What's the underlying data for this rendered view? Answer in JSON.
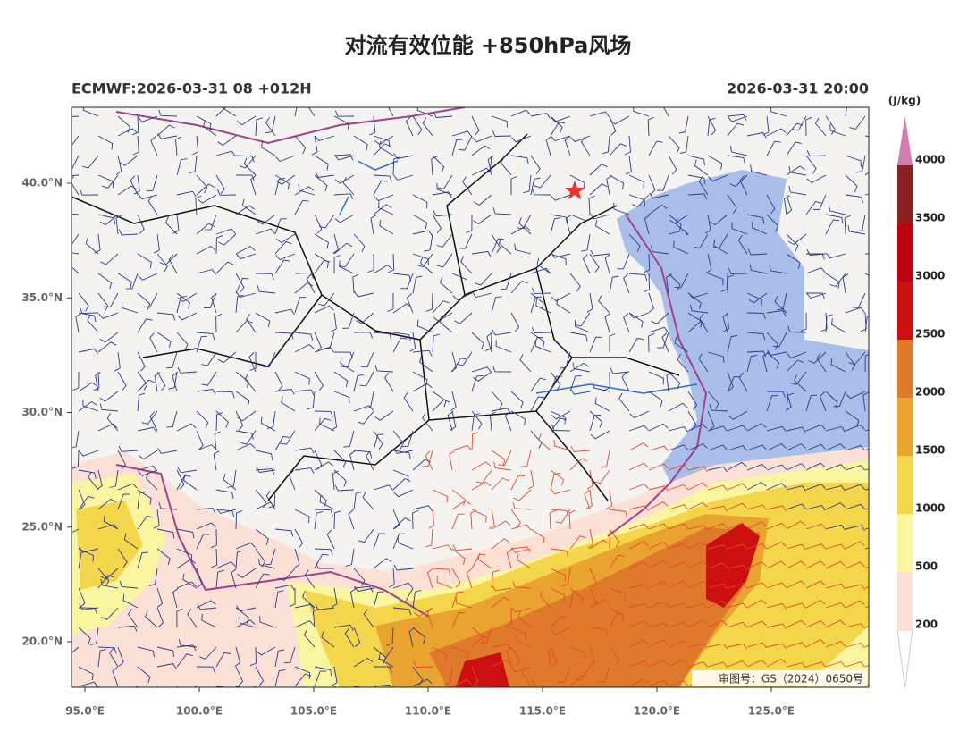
{
  "header": {
    "title": "对流有效位能 +850hPa风场",
    "left": "ECMWF:2026-03-31 08 +012H",
    "right": "2026-03-31 20:00"
  },
  "axes": {
    "x_ticks": [
      {
        "value": 95,
        "label": "95.0°E"
      },
      {
        "value": 100,
        "label": "100.0°E"
      },
      {
        "value": 105,
        "label": "105.0°E"
      },
      {
        "value": 110,
        "label": "110.0°E"
      },
      {
        "value": 115,
        "label": "115.0°E"
      },
      {
        "value": 120,
        "label": "120.0°E"
      },
      {
        "value": 125,
        "label": "125.0°E"
      }
    ],
    "y_ticks": [
      {
        "value": 40,
        "label": "40.0°N"
      },
      {
        "value": 35,
        "label": "35.0°N"
      },
      {
        "value": 30,
        "label": "30.0°N"
      },
      {
        "value": 25,
        "label": "25.0°N"
      },
      {
        "value": 20,
        "label": "20.0°N"
      }
    ]
  },
  "colorbar": {
    "unit": "(J/kg)",
    "levels": [
      200,
      500,
      1000,
      1500,
      2000,
      2500,
      3000,
      3500,
      4000
    ]
  },
  "footer": "审图号：GS（2024）0650号"
}
